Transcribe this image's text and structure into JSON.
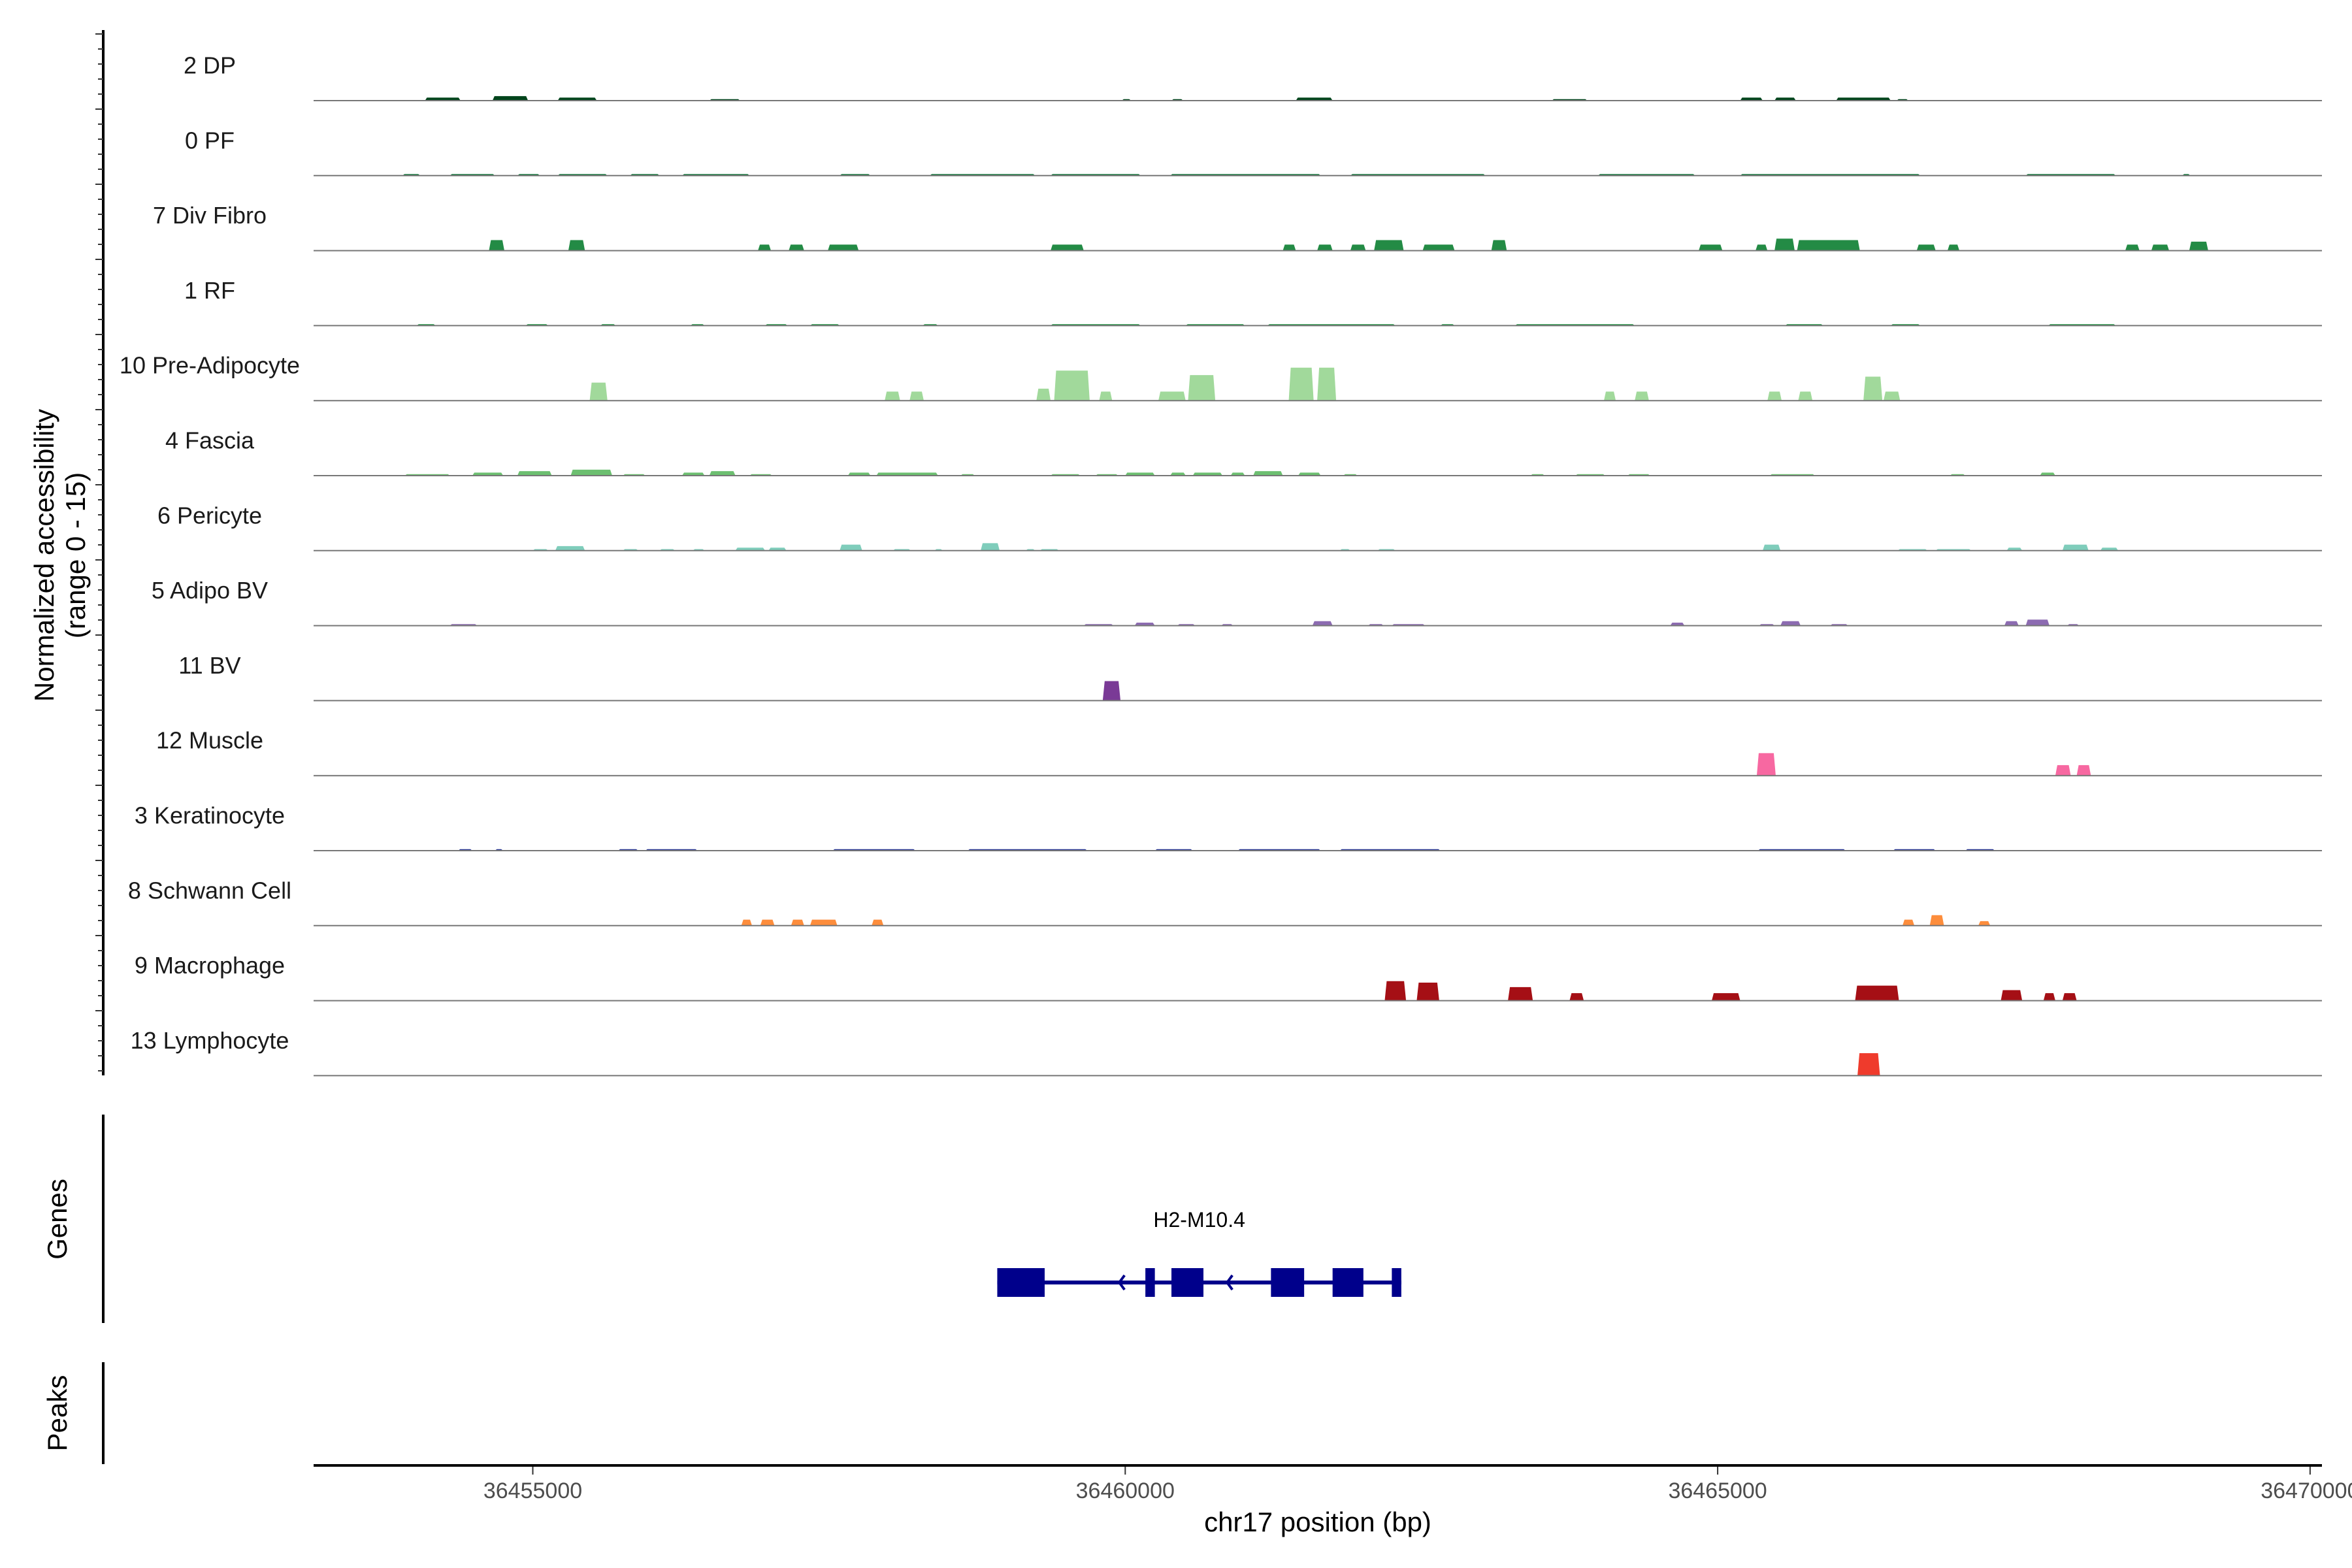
{
  "chart_data": {
    "type": "area",
    "title": "",
    "xlabel": "chr17 position (bp)",
    "ylabel": "Normalized accessibility",
    "ylabel_sub": "(range 0 - 15)",
    "ylim": [
      0,
      15
    ],
    "xlim": [
      36453150,
      36470100
    ],
    "x_ticks": [
      36455000,
      36460000,
      36465000,
      36470000
    ],
    "x_tick_labels": [
      "36455000",
      "36460000",
      "36465000",
      "36470000"
    ],
    "grid": false,
    "legend": "none",
    "tracks": [
      {
        "name": "2 DP",
        "color": "#00441b",
        "peaks": [
          [
            36454090,
            36454390,
            0.6
          ],
          [
            36454660,
            36454960,
            0.9
          ],
          [
            36455210,
            36455540,
            0.6
          ],
          [
            36456490,
            36456750,
            0.3
          ],
          [
            36459970,
            36460050,
            0.3
          ],
          [
            36460390,
            36460490,
            0.3
          ],
          [
            36461440,
            36461750,
            0.6
          ],
          [
            36463600,
            36463900,
            0.3
          ],
          [
            36465190,
            36465380,
            0.6
          ],
          [
            36465480,
            36465660,
            0.6
          ],
          [
            36466000,
            36466460,
            0.6
          ],
          [
            36466510,
            36466610,
            0.3
          ]
        ]
      },
      {
        "name": "0 PF",
        "color": "#006d2c",
        "peaks": [
          [
            36453900,
            36454050,
            0.3
          ],
          [
            36454300,
            36454680,
            0.3
          ],
          [
            36454870,
            36455060,
            0.3
          ],
          [
            36455210,
            36455630,
            0.3
          ],
          [
            36455820,
            36456070,
            0.3
          ],
          [
            36456260,
            36456830,
            0.3
          ],
          [
            36457590,
            36457850,
            0.3
          ],
          [
            36458350,
            36459240,
            0.3
          ],
          [
            36459370,
            36460130,
            0.3
          ],
          [
            36460380,
            36461650,
            0.3
          ],
          [
            36461900,
            36463040,
            0.3
          ],
          [
            36463990,
            36464810,
            0.3
          ],
          [
            36465190,
            36466710,
            0.3
          ],
          [
            36467600,
            36468360,
            0.3
          ],
          [
            36468920,
            36468990,
            0.3
          ]
        ]
      },
      {
        "name": "7 Div Fibro",
        "color": "#238b45",
        "peaks": [
          [
            36454630,
            36454760,
            2.1
          ],
          [
            36455300,
            36455440,
            2.1
          ],
          [
            36456900,
            36457010,
            1.2
          ],
          [
            36457160,
            36457290,
            1.2
          ],
          [
            36457490,
            36457750,
            1.2
          ],
          [
            36459370,
            36459650,
            1.2
          ],
          [
            36461330,
            36461440,
            1.2
          ],
          [
            36461620,
            36461750,
            1.2
          ],
          [
            36461900,
            36462030,
            1.2
          ],
          [
            36462100,
            36462350,
            2.1
          ],
          [
            36462510,
            36462780,
            1.2
          ],
          [
            36463090,
            36463220,
            2.1
          ],
          [
            36464840,
            36465040,
            1.2
          ],
          [
            36465320,
            36465420,
            1.2
          ],
          [
            36465480,
            36465650,
            2.4
          ],
          [
            36465670,
            36466200,
            2.1
          ],
          [
            36466680,
            36466840,
            1.2
          ],
          [
            36466940,
            36467040,
            1.2
          ],
          [
            36468440,
            36468560,
            1.2
          ],
          [
            36468660,
            36468810,
            1.2
          ],
          [
            36468980,
            36469140,
            1.8
          ]
        ]
      },
      {
        "name": "1 RF",
        "color": "#2e9a4f",
        "peaks": [
          [
            36454020,
            36454180,
            0.3
          ],
          [
            36454940,
            36455130,
            0.3
          ],
          [
            36455570,
            36455700,
            0.3
          ],
          [
            36456330,
            36456450,
            0.3
          ],
          [
            36456960,
            36457150,
            0.3
          ],
          [
            36457340,
            36457590,
            0.3
          ],
          [
            36458290,
            36458420,
            0.3
          ],
          [
            36459370,
            36460130,
            0.3
          ],
          [
            36460510,
            36461010,
            0.3
          ],
          [
            36461200,
            36462280,
            0.3
          ],
          [
            36462660,
            36462780,
            0.3
          ],
          [
            36463290,
            36464300,
            0.3
          ],
          [
            36465570,
            36465890,
            0.3
          ],
          [
            36466460,
            36466710,
            0.3
          ],
          [
            36467790,
            36468360,
            0.3
          ]
        ]
      },
      {
        "name": "10 Pre-Adipocyte",
        "color": "#a1d99b",
        "peaks": [
          [
            36455480,
            36455630,
            3.6
          ],
          [
            36457970,
            36458100,
            1.8
          ],
          [
            36458180,
            36458300,
            1.8
          ],
          [
            36459250,
            36459370,
            2.4
          ],
          [
            36459400,
            36459700,
            6.0
          ],
          [
            36459780,
            36459890,
            1.8
          ],
          [
            36460280,
            36460510,
            1.8
          ],
          [
            36460530,
            36460760,
            5.1
          ],
          [
            36461380,
            36461590,
            6.6
          ],
          [
            36461620,
            36461780,
            6.6
          ],
          [
            36464040,
            36464140,
            1.8
          ],
          [
            36464300,
            36464420,
            1.8
          ],
          [
            36465420,
            36465540,
            1.8
          ],
          [
            36465680,
            36465800,
            1.8
          ],
          [
            36466230,
            36466390,
            4.8
          ],
          [
            36466400,
            36466540,
            1.8
          ]
        ]
      },
      {
        "name": "4 Fascia",
        "color": "#6cbf70",
        "peaks": [
          [
            36453920,
            36454300,
            0.3
          ],
          [
            36454490,
            36454750,
            0.6
          ],
          [
            36454870,
            36455160,
            0.9
          ],
          [
            36455320,
            36455670,
            1.2
          ],
          [
            36455760,
            36455950,
            0.3
          ],
          [
            36456260,
            36456450,
            0.6
          ],
          [
            36456490,
            36456710,
            0.9
          ],
          [
            36456830,
            36457020,
            0.3
          ],
          [
            36457660,
            36457850,
            0.6
          ],
          [
            36457900,
            36458420,
            0.6
          ],
          [
            36458610,
            36458730,
            0.3
          ],
          [
            36459370,
            36459620,
            0.3
          ],
          [
            36459750,
            36459940,
            0.3
          ],
          [
            36460000,
            36460250,
            0.6
          ],
          [
            36460380,
            36460510,
            0.6
          ],
          [
            36460570,
            36460820,
            0.6
          ],
          [
            36460890,
            36461010,
            0.6
          ],
          [
            36461080,
            36461330,
            0.9
          ],
          [
            36461460,
            36461650,
            0.6
          ],
          [
            36461840,
            36461960,
            0.3
          ],
          [
            36463420,
            36463540,
            0.3
          ],
          [
            36463800,
            36464050,
            0.3
          ],
          [
            36464240,
            36464430,
            0.3
          ],
          [
            36465440,
            36465820,
            0.3
          ],
          [
            36466960,
            36467090,
            0.3
          ],
          [
            36467720,
            36467850,
            0.6
          ]
        ]
      },
      {
        "name": "6 Pericyte",
        "color": "#7fcdbb",
        "peaks": [
          [
            36455000,
            36455130,
            0.3
          ],
          [
            36455190,
            36455440,
            0.9
          ],
          [
            36455760,
            36455890,
            0.3
          ],
          [
            36456070,
            36456200,
            0.3
          ],
          [
            36456350,
            36456450,
            0.3
          ],
          [
            36456710,
            36456960,
            0.6
          ],
          [
            36456990,
            36457140,
            0.6
          ],
          [
            36457590,
            36457780,
            1.2
          ],
          [
            36458040,
            36458190,
            0.3
          ],
          [
            36458390,
            36458460,
            0.3
          ],
          [
            36458780,
            36458940,
            1.5
          ],
          [
            36459160,
            36459240,
            0.3
          ],
          [
            36459280,
            36459440,
            0.3
          ],
          [
            36461810,
            36461900,
            0.3
          ],
          [
            36462130,
            36462280,
            0.3
          ],
          [
            36465380,
            36465530,
            1.2
          ],
          [
            36466520,
            36466770,
            0.3
          ],
          [
            36466840,
            36467140,
            0.3
          ],
          [
            36467440,
            36467570,
            0.6
          ],
          [
            36467910,
            36468130,
            1.2
          ],
          [
            36468230,
            36468380,
            0.6
          ]
        ]
      },
      {
        "name": "5 Adipo BV",
        "color": "#8c6bb1",
        "peaks": [
          [
            36454300,
            36454530,
            0.3
          ],
          [
            36459650,
            36459900,
            0.3
          ],
          [
            36460080,
            36460250,
            0.6
          ],
          [
            36460440,
            36460590,
            0.3
          ],
          [
            36460810,
            36460910,
            0.3
          ],
          [
            36461580,
            36461750,
            0.9
          ],
          [
            36462050,
            36462180,
            0.3
          ],
          [
            36462250,
            36462530,
            0.3
          ],
          [
            36464600,
            36464720,
            0.6
          ],
          [
            36465350,
            36465480,
            0.3
          ],
          [
            36465530,
            36465700,
            0.9
          ],
          [
            36465950,
            36466100,
            0.3
          ],
          [
            36467420,
            36467540,
            0.9
          ],
          [
            36467600,
            36467800,
            1.2
          ],
          [
            36467950,
            36468050,
            0.3
          ]
        ]
      },
      {
        "name": "11 BV",
        "color": "#7a3a96",
        "peaks": [
          [
            36459810,
            36459960,
            3.9
          ]
        ]
      },
      {
        "name": "12 Muscle",
        "color": "#f768a1",
        "peaks": [
          [
            36465330,
            36465490,
            4.5
          ],
          [
            36467850,
            36467980,
            2.1
          ],
          [
            36468030,
            36468150,
            2.1
          ]
        ]
      },
      {
        "name": "3 Keratinocyte",
        "color": "#253494",
        "peaks": [
          [
            36454370,
            36454490,
            0.3
          ],
          [
            36454680,
            36454750,
            0.3
          ],
          [
            36455720,
            36455890,
            0.3
          ],
          [
            36455950,
            36456390,
            0.3
          ],
          [
            36457530,
            36458230,
            0.3
          ],
          [
            36458670,
            36459680,
            0.3
          ],
          [
            36460250,
            36460570,
            0.3
          ],
          [
            36460950,
            36461650,
            0.3
          ],
          [
            36461810,
            36462660,
            0.3
          ],
          [
            36465340,
            36466080,
            0.3
          ],
          [
            36466480,
            36466840,
            0.3
          ],
          [
            36467090,
            36467340,
            0.3
          ]
        ]
      },
      {
        "name": "8 Schwann Cell",
        "color": "#fd8d3c",
        "peaks": [
          [
            36456760,
            36456850,
            1.2
          ],
          [
            36456920,
            36457040,
            1.2
          ],
          [
            36457180,
            36457290,
            1.2
          ],
          [
            36457340,
            36457570,
            1.2
          ],
          [
            36457860,
            36457960,
            1.2
          ],
          [
            36466560,
            36466660,
            1.2
          ],
          [
            36466790,
            36466910,
            2.1
          ],
          [
            36467200,
            36467300,
            0.9
          ]
        ]
      },
      {
        "name": "9 Macrophage",
        "color": "#a50f15",
        "peaks": [
          [
            36462190,
            36462370,
            3.9
          ],
          [
            36462460,
            36462650,
            3.6
          ],
          [
            36463230,
            36463440,
            2.7
          ],
          [
            36463750,
            36463870,
            1.5
          ],
          [
            36464950,
            36465190,
            1.5
          ],
          [
            36466160,
            36466530,
            3.0
          ],
          [
            36467390,
            36467570,
            2.1
          ],
          [
            36467750,
            36467850,
            1.5
          ],
          [
            36467910,
            36468030,
            1.5
          ]
        ]
      },
      {
        "name": "13 Lymphocyte",
        "color": "#ef3b2c",
        "peaks": [
          [
            36466180,
            36466370,
            4.5
          ]
        ]
      }
    ],
    "genes_panel": {
      "title": "Genes",
      "color": "#00008b",
      "genes": [
        {
          "name": "H2-M10.4",
          "strand": "-",
          "start": 36458920,
          "end": 36462330,
          "exons": [
            [
              36458920,
              36459320
            ],
            [
              36460170,
              36460250
            ],
            [
              36460390,
              36460660
            ],
            [
              36461230,
              36461510
            ],
            [
              36461750,
              36462010
            ],
            [
              36462250,
              36462330
            ]
          ],
          "arrows": [
            36459950,
            36460860
          ]
        }
      ]
    },
    "peaks_panel": {
      "title": "Peaks"
    }
  }
}
